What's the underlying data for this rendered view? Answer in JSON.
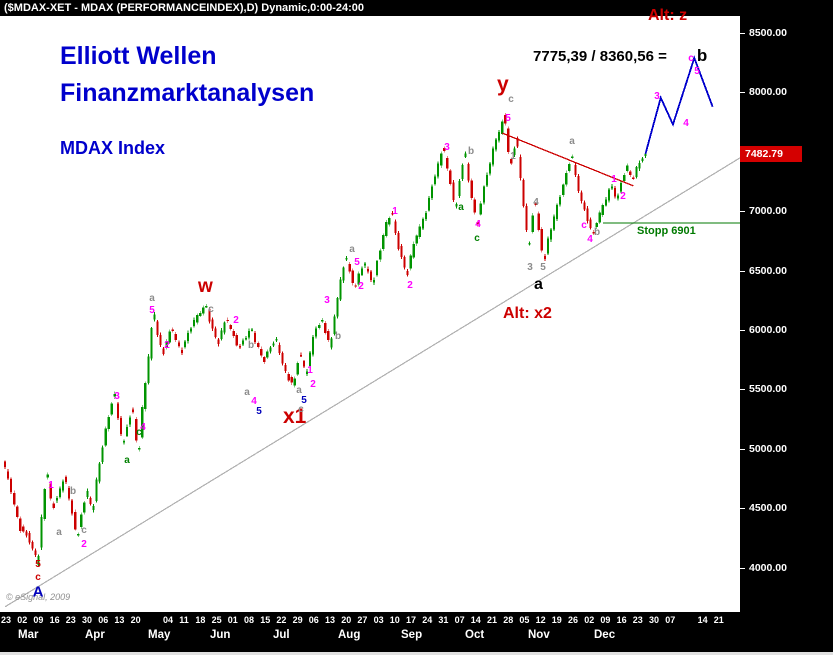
{
  "title_bar": {
    "text": "($MDAX-XET - MDAX (PERFORMANCEINDEX),D) Dynamic,0:00-24:00"
  },
  "watermark": {
    "line1": "Elliott Wellen",
    "line2": "Finanzmarktanalysen",
    "line3": "MDAX Index"
  },
  "callouts": {
    "alt_z": "Alt: z",
    "equation": "7775,39 / 8360,56 =",
    "equation_b": "b",
    "y": "y",
    "w": "w",
    "x1": "x1",
    "a": "a",
    "alt_x2": "Alt: x2",
    "stopp": "Stopp 6901"
  },
  "copyright": "© eSignal, 2009",
  "colors": {
    "watermark_blue": "#0000cc",
    "signal_red": "#cc0000",
    "stop_green": "#007a00",
    "axis_bg": "#000000",
    "axis_text": "#ffffff",
    "current_price_bg": "#d40000"
  },
  "price_axis": {
    "gridlines": [
      {
        "label": "8500.00",
        "price": 8500
      },
      {
        "label": "8000.00",
        "price": 8000
      },
      {
        "label": "7000.00",
        "price": 7000
      },
      {
        "label": "6500.00",
        "price": 6500
      },
      {
        "label": "6000.00",
        "price": 6000
      },
      {
        "label": "5500.00",
        "price": 5500
      },
      {
        "label": "5000.00",
        "price": 5000
      },
      {
        "label": "4500.00",
        "price": 4500
      },
      {
        "label": "4000.00",
        "price": 4000
      }
    ],
    "current": {
      "label": "7482.79",
      "price": 7482.79
    }
  },
  "time_axis": {
    "ticks": [
      "23",
      "02",
      "09",
      "16",
      "23",
      "30",
      "06",
      "13",
      "20",
      "",
      "04",
      "11",
      "18",
      "25",
      "01",
      "08",
      "15",
      "22",
      "29",
      "06",
      "13",
      "20",
      "27",
      "03",
      "10",
      "17",
      "24",
      "31",
      "07",
      "14",
      "21",
      "28",
      "05",
      "12",
      "19",
      "26",
      "02",
      "09",
      "16",
      "23",
      "30",
      "07",
      "",
      "14",
      "21"
    ],
    "months": [
      {
        "label": "Mar",
        "x": 30
      },
      {
        "label": "Apr",
        "x": 97
      },
      {
        "label": "May",
        "x": 160
      },
      {
        "label": "Jun",
        "x": 222
      },
      {
        "label": "Jul",
        "x": 285
      },
      {
        "label": "Aug",
        "x": 350
      },
      {
        "label": "Sep",
        "x": 413
      },
      {
        "label": "Oct",
        "x": 477
      },
      {
        "label": "Nov",
        "x": 540
      },
      {
        "label": "Dec",
        "x": 606
      }
    ]
  },
  "chart_data": {
    "type": "candlestick",
    "title": "MDAX (PERFORMANCEINDEX), Daily",
    "unit": "trading-day index from first visible bar (Feb 23)",
    "last_close": 7482.79,
    "ylim": [
      3650,
      8640
    ],
    "gridline_step": 500,
    "colors": {
      "up_candle": "#009400",
      "down_candle": "#cc0000"
    },
    "swings": [
      [
        0,
        4870
      ],
      [
        2,
        4690
      ],
      [
        5,
        4360
      ],
      [
        8,
        4250
      ],
      [
        11,
        4060
      ],
      [
        14,
        4770
      ],
      [
        16,
        4520
      ],
      [
        20,
        4740
      ],
      [
        24,
        4280
      ],
      [
        27,
        4620
      ],
      [
        29,
        4500
      ],
      [
        33,
        5100
      ],
      [
        36,
        5450
      ],
      [
        39,
        5060
      ],
      [
        42,
        5320
      ],
      [
        44,
        5000
      ],
      [
        49,
        6110
      ],
      [
        52,
        5820
      ],
      [
        55,
        6000
      ],
      [
        58,
        5820
      ],
      [
        62,
        6060
      ],
      [
        66,
        6200
      ],
      [
        70,
        5900
      ],
      [
        73,
        6080
      ],
      [
        77,
        5860
      ],
      [
        81,
        6000
      ],
      [
        85,
        5750
      ],
      [
        89,
        5920
      ],
      [
        93,
        5600
      ],
      [
        95,
        5560
      ],
      [
        97,
        5790
      ],
      [
        99,
        5640
      ],
      [
        102,
        5980
      ],
      [
        104,
        6080
      ],
      [
        107,
        5890
      ],
      [
        110,
        6340
      ],
      [
        112,
        6600
      ],
      [
        115,
        6370
      ],
      [
        118,
        6550
      ],
      [
        121,
        6410
      ],
      [
        125,
        6850
      ],
      [
        127,
        6980
      ],
      [
        129,
        6750
      ],
      [
        132,
        6480
      ],
      [
        135,
        6760
      ],
      [
        138,
        6960
      ],
      [
        141,
        7260
      ],
      [
        144,
        7520
      ],
      [
        148,
        7050
      ],
      [
        151,
        7470
      ],
      [
        155,
        6900
      ],
      [
        158,
        7260
      ],
      [
        161,
        7560
      ],
      [
        164,
        7775
      ],
      [
        166,
        7420
      ],
      [
        168,
        7580
      ],
      [
        172,
        6730
      ],
      [
        174,
        7060
      ],
      [
        177,
        6610
      ],
      [
        180,
        6900
      ],
      [
        183,
        7180
      ],
      [
        186,
        7460
      ],
      [
        189,
        7120
      ],
      [
        193,
        6820
      ],
      [
        196,
        7010
      ],
      [
        199,
        7200
      ],
      [
        201,
        7120
      ],
      [
        204,
        7360
      ],
      [
        206,
        7280
      ],
      [
        210,
        7483
      ]
    ],
    "lines": {
      "support_trendline": {
        "color": "#b0b0b0",
        "points": [
          [
            0,
            3669
          ],
          [
            241,
            7449
          ]
        ]
      },
      "resistance_trendline": {
        "color": "#cc0000",
        "points": [
          [
            163,
            7658
          ],
          [
            206,
            7213
          ]
        ]
      },
      "stop_line": {
        "color": "#007a00",
        "price": 6901,
        "from_day": 196,
        "to_day": 241
      },
      "projection": {
        "color": "#0000cc",
        "points": [
          [
            210,
            7483
          ],
          [
            215,
            7955
          ],
          [
            219,
            7730
          ],
          [
            226,
            8290
          ],
          [
            232,
            7880
          ]
        ]
      }
    },
    "palette": {
      "M": "#ff00ff",
      "G": "#8c8c8c",
      "N": "#008000",
      "R": "#cc0000",
      "B": "#0000bb"
    },
    "wave_labels": [
      [
        "1",
        51,
        486,
        "M"
      ],
      [
        "a",
        59,
        533,
        "G"
      ],
      [
        "b",
        73,
        492,
        "G"
      ],
      [
        "c",
        84,
        531,
        "G"
      ],
      [
        "2",
        84,
        545,
        "M"
      ],
      [
        "3",
        117,
        397,
        "M"
      ],
      [
        "a",
        127,
        461,
        "N"
      ],
      [
        "c",
        139,
        433,
        "N"
      ],
      [
        "4",
        143,
        428,
        "M"
      ],
      [
        "a",
        152,
        299,
        "G"
      ],
      [
        "5",
        152,
        311,
        "M"
      ],
      [
        "2",
        167,
        346,
        "M"
      ],
      [
        "c",
        211,
        310,
        "G"
      ],
      [
        "2",
        236,
        321,
        "M"
      ],
      [
        "b",
        251,
        346,
        "G"
      ],
      [
        "a",
        247,
        393,
        "G"
      ],
      [
        "4",
        254,
        402,
        "M"
      ],
      [
        "5",
        259,
        412,
        "B"
      ],
      [
        "a",
        299,
        391,
        "G"
      ],
      [
        "5",
        304,
        401,
        "B"
      ],
      [
        "c",
        301,
        410,
        "G"
      ],
      [
        "1",
        310,
        371,
        "M"
      ],
      [
        "2",
        313,
        385,
        "M"
      ],
      [
        "3",
        327,
        301,
        "M"
      ],
      [
        "b",
        338,
        337,
        "G"
      ],
      [
        "a",
        352,
        250,
        "G"
      ],
      [
        "5",
        357,
        263,
        "M"
      ],
      [
        "2",
        361,
        287,
        "M"
      ],
      [
        "1",
        395,
        212,
        "M"
      ],
      [
        "2",
        410,
        286,
        "M"
      ],
      [
        "3",
        447,
        148,
        "M"
      ],
      [
        "a",
        461,
        208,
        "N"
      ],
      [
        "b",
        471,
        152,
        "G"
      ],
      [
        "4",
        478,
        225,
        "M"
      ],
      [
        "c",
        477,
        239,
        "N"
      ],
      [
        "c",
        511,
        100,
        "G"
      ],
      [
        "5",
        508,
        119,
        "M"
      ],
      [
        "1",
        513,
        157,
        "G"
      ],
      [
        "4",
        536,
        203,
        "G"
      ],
      [
        "3",
        530,
        268,
        "G"
      ],
      [
        "5",
        543,
        268,
        "G"
      ],
      [
        "a",
        572,
        142,
        "G"
      ],
      [
        "c",
        584,
        226,
        "M"
      ],
      [
        "4",
        590,
        240,
        "M"
      ],
      [
        "b",
        597,
        233,
        "G"
      ],
      [
        "1",
        614,
        180,
        "M"
      ],
      [
        "2",
        623,
        197,
        "M"
      ],
      [
        "3",
        657,
        97,
        "M"
      ],
      [
        "4",
        686,
        124,
        "M"
      ],
      [
        "c",
        691,
        59,
        "M"
      ],
      [
        "5",
        697,
        72,
        "M"
      ],
      [
        "5",
        38,
        565,
        "R"
      ],
      [
        "c",
        38,
        578,
        "R"
      ],
      [
        "A",
        38,
        592,
        "B",
        15
      ]
    ]
  }
}
